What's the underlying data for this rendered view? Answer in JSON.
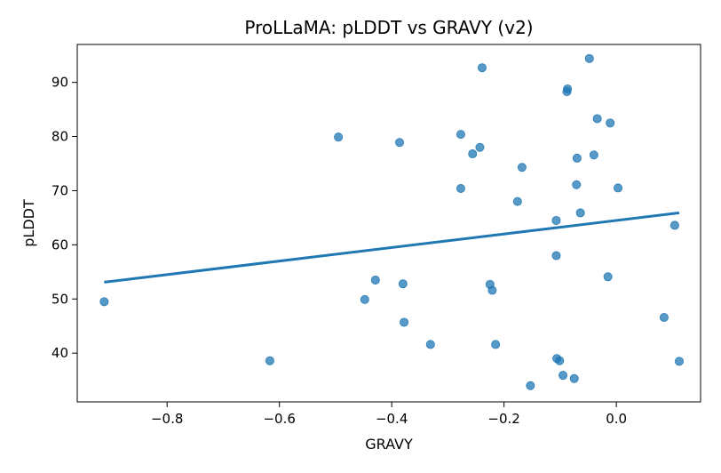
{
  "chart_data": {
    "type": "scatter",
    "title": "ProLLaMA: pLDDT vs GRAVY (v2)",
    "xlabel": "GRAVY",
    "ylabel": "pLDDT",
    "xlim": [
      -0.96,
      0.15
    ],
    "ylim": [
      31,
      97
    ],
    "xticks": [
      -0.8,
      -0.6,
      -0.4,
      -0.2,
      0.0
    ],
    "xtick_labels": [
      "−0.8",
      "−0.6",
      "−0.4",
      "−0.2",
      "0.0"
    ],
    "yticks": [
      40,
      50,
      60,
      70,
      80,
      90
    ],
    "ytick_labels": [
      "40",
      "50",
      "60",
      "70",
      "80",
      "90"
    ],
    "grid": false,
    "colors": {
      "points": "#1f77b4",
      "trend": "#1f77b4"
    },
    "points": [
      {
        "x": -0.912,
        "y": 49.5
      },
      {
        "x": -0.617,
        "y": 38.6
      },
      {
        "x": -0.495,
        "y": 79.9
      },
      {
        "x": -0.448,
        "y": 49.9
      },
      {
        "x": -0.429,
        "y": 53.5
      },
      {
        "x": -0.386,
        "y": 78.9
      },
      {
        "x": -0.38,
        "y": 52.8
      },
      {
        "x": -0.378,
        "y": 45.7
      },
      {
        "x": -0.331,
        "y": 41.6
      },
      {
        "x": -0.277,
        "y": 80.4
      },
      {
        "x": -0.277,
        "y": 70.4
      },
      {
        "x": -0.256,
        "y": 76.8
      },
      {
        "x": -0.243,
        "y": 78.0
      },
      {
        "x": -0.239,
        "y": 92.7
      },
      {
        "x": -0.225,
        "y": 52.7
      },
      {
        "x": -0.221,
        "y": 51.6
      },
      {
        "x": -0.215,
        "y": 41.6
      },
      {
        "x": -0.176,
        "y": 68.0
      },
      {
        "x": -0.168,
        "y": 74.3
      },
      {
        "x": -0.153,
        "y": 34.0
      },
      {
        "x": -0.107,
        "y": 64.5
      },
      {
        "x": -0.107,
        "y": 58.0
      },
      {
        "x": -0.106,
        "y": 39.0
      },
      {
        "x": -0.101,
        "y": 38.6
      },
      {
        "x": -0.095,
        "y": 35.9
      },
      {
        "x": -0.088,
        "y": 88.3
      },
      {
        "x": -0.087,
        "y": 88.8
      },
      {
        "x": -0.075,
        "y": 35.3
      },
      {
        "x": -0.071,
        "y": 71.1
      },
      {
        "x": -0.07,
        "y": 76.0
      },
      {
        "x": -0.064,
        "y": 65.9
      },
      {
        "x": -0.048,
        "y": 94.4
      },
      {
        "x": -0.04,
        "y": 76.6
      },
      {
        "x": -0.034,
        "y": 83.3
      },
      {
        "x": -0.015,
        "y": 54.1
      },
      {
        "x": -0.011,
        "y": 82.5
      },
      {
        "x": 0.003,
        "y": 70.5
      },
      {
        "x": 0.085,
        "y": 46.6
      },
      {
        "x": 0.104,
        "y": 63.6
      },
      {
        "x": 0.112,
        "y": 38.5
      }
    ],
    "trend_line": {
      "x": [
        -0.912,
        0.112
      ],
      "y": [
        53.1,
        65.9
      ]
    }
  }
}
